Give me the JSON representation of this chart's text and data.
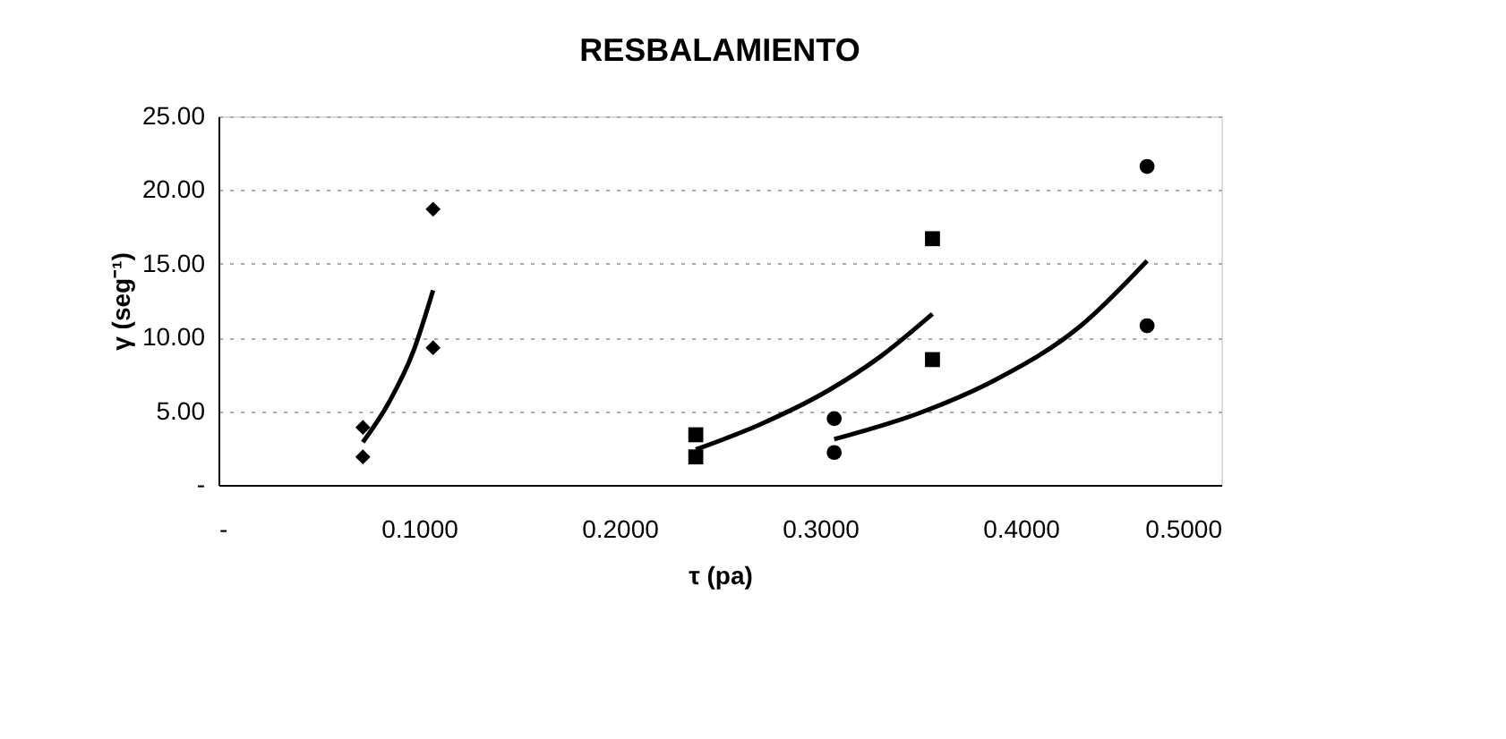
{
  "chart_data": {
    "type": "scatter",
    "title": "RESBALAMIENTO",
    "xlabel": "τ (pa)",
    "ylabel": "γ (seg⁻¹)",
    "xlim": [
      0,
      0.5
    ],
    "ylim": [
      0,
      25
    ],
    "xticks": [
      {
        "value": 0,
        "label": "-"
      },
      {
        "value": 0.1,
        "label": "0.1000"
      },
      {
        "value": 0.2,
        "label": "0.2000"
      },
      {
        "value": 0.3,
        "label": "0.3000"
      },
      {
        "value": 0.4,
        "label": "0.4000"
      },
      {
        "value": 0.5,
        "label": "0.5000"
      }
    ],
    "yticks": [
      {
        "value": 0,
        "label": "-"
      },
      {
        "value": 5,
        "label": "5.00"
      },
      {
        "value": 10,
        "label": "10.00"
      },
      {
        "value": 15,
        "label": "15.00"
      },
      {
        "value": 20,
        "label": "20.00"
      },
      {
        "value": 25,
        "label": "25.00"
      }
    ],
    "grid": "y",
    "series": [
      {
        "marker": "diamond",
        "color": "#000000",
        "x": [
          0.072,
          0.072,
          0.107,
          0.107
        ],
        "values": [
          3.9,
          1.9,
          18.7,
          9.3
        ]
      },
      {
        "marker": "square",
        "color": "#000000",
        "x": [
          0.238,
          0.238,
          0.356,
          0.356
        ],
        "values": [
          3.4,
          1.9,
          16.7,
          8.5
        ]
      },
      {
        "marker": "circle",
        "color": "#000000",
        "x": [
          0.307,
          0.307,
          0.463,
          0.463
        ],
        "values": [
          4.5,
          2.2,
          21.6,
          10.8
        ]
      },
      {
        "type": "line",
        "marker": "none",
        "line_style": "solid",
        "color": "#000000",
        "x": [
          0.072,
          0.085,
          0.097,
          0.107
        ],
        "values": [
          2.9,
          5.6,
          9.0,
          13.2
        ]
      },
      {
        "type": "line",
        "marker": "none",
        "line_style": "solid",
        "color": "#000000",
        "x": [
          0.238,
          0.27,
          0.304,
          0.33,
          0.356
        ],
        "values": [
          2.4,
          4.1,
          6.4,
          8.7,
          11.6
        ]
      },
      {
        "type": "line",
        "marker": "none",
        "line_style": "solid",
        "color": "#000000",
        "x": [
          0.307,
          0.35,
          0.387,
          0.43,
          0.463
        ],
        "values": [
          3.1,
          4.9,
          7.1,
          10.8,
          15.2
        ]
      }
    ]
  }
}
